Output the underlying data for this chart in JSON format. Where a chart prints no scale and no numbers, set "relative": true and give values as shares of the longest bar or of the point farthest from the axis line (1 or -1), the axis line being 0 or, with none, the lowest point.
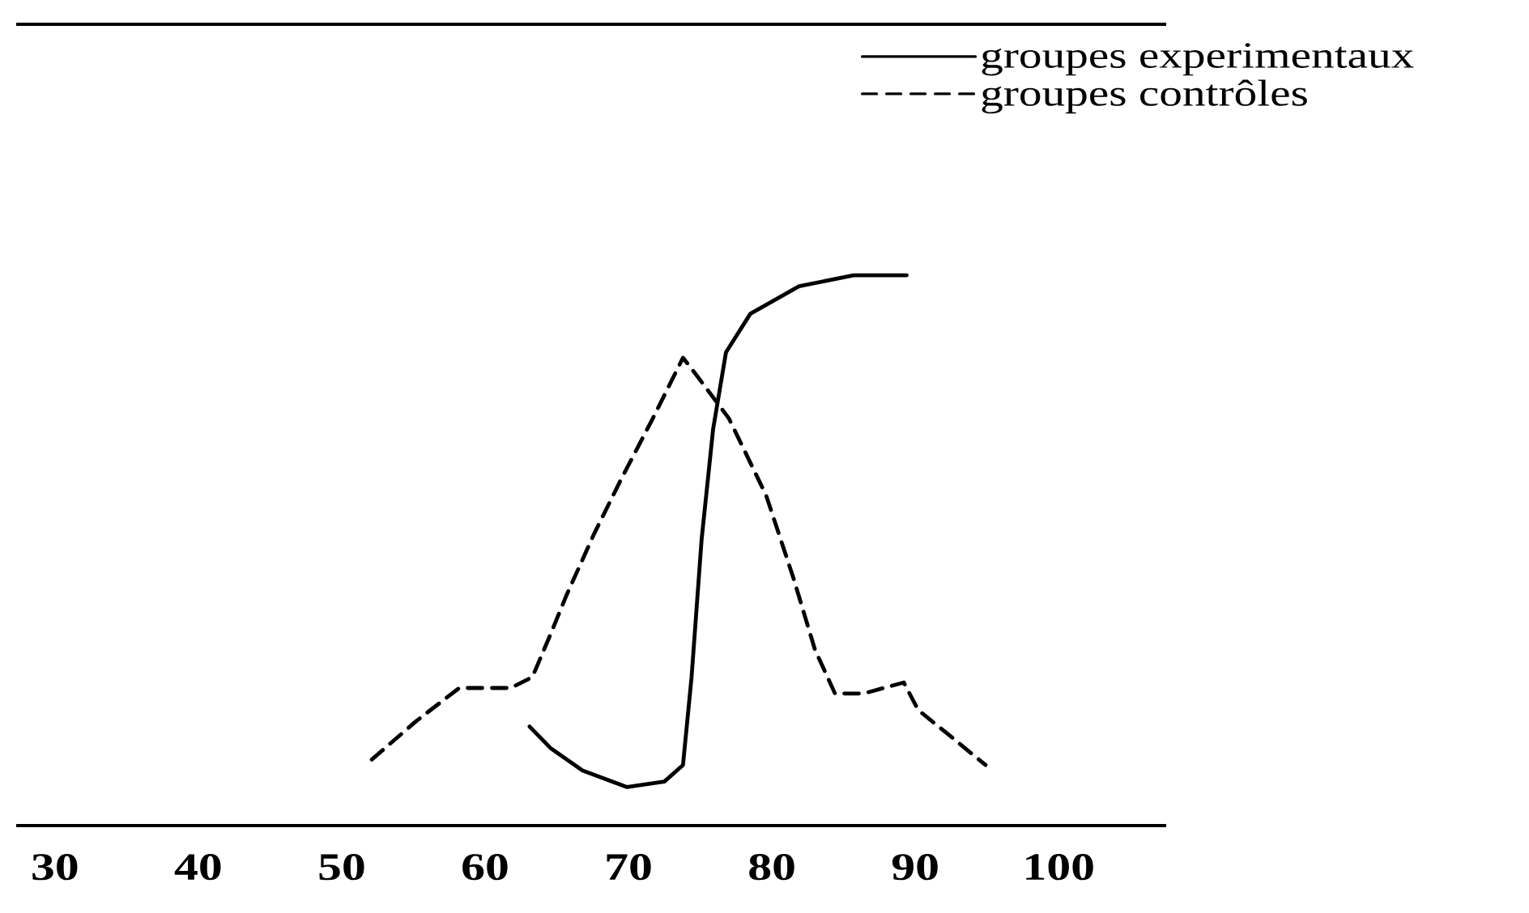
{
  "chart_data": {
    "type": "line",
    "relative": true,
    "legend": "top right",
    "grid": false,
    "marker": "none",
    "xlim": [
      27.3,
      107.5
    ],
    "xticks": [
      30,
      40,
      50,
      60,
      70,
      80,
      90,
      100
    ],
    "series": [
      {
        "name": "groupes experimentaux",
        "color": "#000000",
        "line_style": "solid",
        "x": [
          63.1,
          64.6,
          66.8,
          69.9,
          72.5,
          73.8,
          74.4,
          75.1,
          75.9,
          76.8,
          78.5,
          81.9,
          85.7,
          89.4
        ],
        "values": [
          0.18,
          0.14,
          0.1,
          0.07,
          0.08,
          0.11,
          0.27,
          0.52,
          0.72,
          0.86,
          0.93,
          0.98,
          1.0,
          1.0
        ]
      },
      {
        "name": "groupes contrôles",
        "color": "#000000",
        "line_style": "dashed",
        "x": [
          52.1,
          55.2,
          58.2,
          59.7,
          61.8,
          63.3,
          64.6,
          65.7,
          67.6,
          69.5,
          71.7,
          73.8,
          74.7,
          77.0,
          79.6,
          81.5,
          83.0,
          84.4,
          86.4,
          89.2,
          90.2,
          92.1,
          94.9
        ],
        "values": [
          0.12,
          0.19,
          0.25,
          0.25,
          0.25,
          0.27,
          0.35,
          0.42,
          0.53,
          0.63,
          0.74,
          0.85,
          0.82,
          0.74,
          0.6,
          0.45,
          0.32,
          0.24,
          0.24,
          0.26,
          0.21,
          0.17,
          0.11
        ]
      }
    ]
  }
}
